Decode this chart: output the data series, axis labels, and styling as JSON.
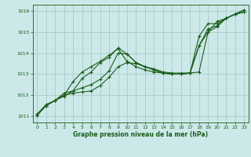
{
  "background_color": "#cce8e8",
  "grid_color": "#aacccc",
  "line_color": "#1a5e1a",
  "xlabel": "Graphe pression niveau de la mer (hPa)",
  "ylim": [
    1010.7,
    1016.3
  ],
  "xlim": [
    -0.5,
    23.5
  ],
  "yticks": [
    1011,
    1012,
    1013,
    1014,
    1015,
    1016
  ],
  "xticks": [
    0,
    1,
    2,
    3,
    4,
    5,
    6,
    7,
    8,
    9,
    10,
    11,
    12,
    13,
    14,
    15,
    16,
    17,
    18,
    19,
    20,
    21,
    22,
    23
  ],
  "series": [
    [
      1011.1,
      1011.55,
      1011.75,
      1012.0,
      1012.1,
      1012.15,
      1012.2,
      1012.45,
      1012.85,
      1013.35,
      1013.55,
      1013.5,
      1013.35,
      1013.25,
      1013.1,
      1013.05,
      1013.05,
      1013.05,
      1013.1,
      1015.0,
      1015.25,
      1015.65,
      1015.85,
      1015.95
    ],
    [
      1011.05,
      1011.5,
      1011.75,
      1011.95,
      1012.2,
      1012.35,
      1012.5,
      1012.75,
      1013.15,
      1014.0,
      1013.95,
      1013.55,
      1013.35,
      1013.2,
      1013.05,
      1013.0,
      1013.0,
      1013.05,
      1014.35,
      1015.15,
      1015.3,
      1015.65,
      1015.85,
      1015.95
    ],
    [
      1011.05,
      1011.5,
      1011.75,
      1012.1,
      1012.2,
      1012.8,
      1013.1,
      1013.55,
      1013.8,
      1014.25,
      1013.95,
      1013.55,
      1013.35,
      1013.2,
      1013.05,
      1013.0,
      1013.0,
      1013.05,
      1014.8,
      1015.4,
      1015.4,
      1015.65,
      1015.85,
      1016.05
    ],
    [
      1011.05,
      1011.5,
      1011.75,
      1012.0,
      1012.65,
      1013.1,
      1013.35,
      1013.6,
      1013.9,
      1014.2,
      1013.6,
      1013.35,
      1013.2,
      1013.1,
      1013.05,
      1013.0,
      1013.0,
      1013.05,
      1014.35,
      1015.0,
      1015.5,
      1015.65,
      1015.85,
      1016.05
    ]
  ]
}
